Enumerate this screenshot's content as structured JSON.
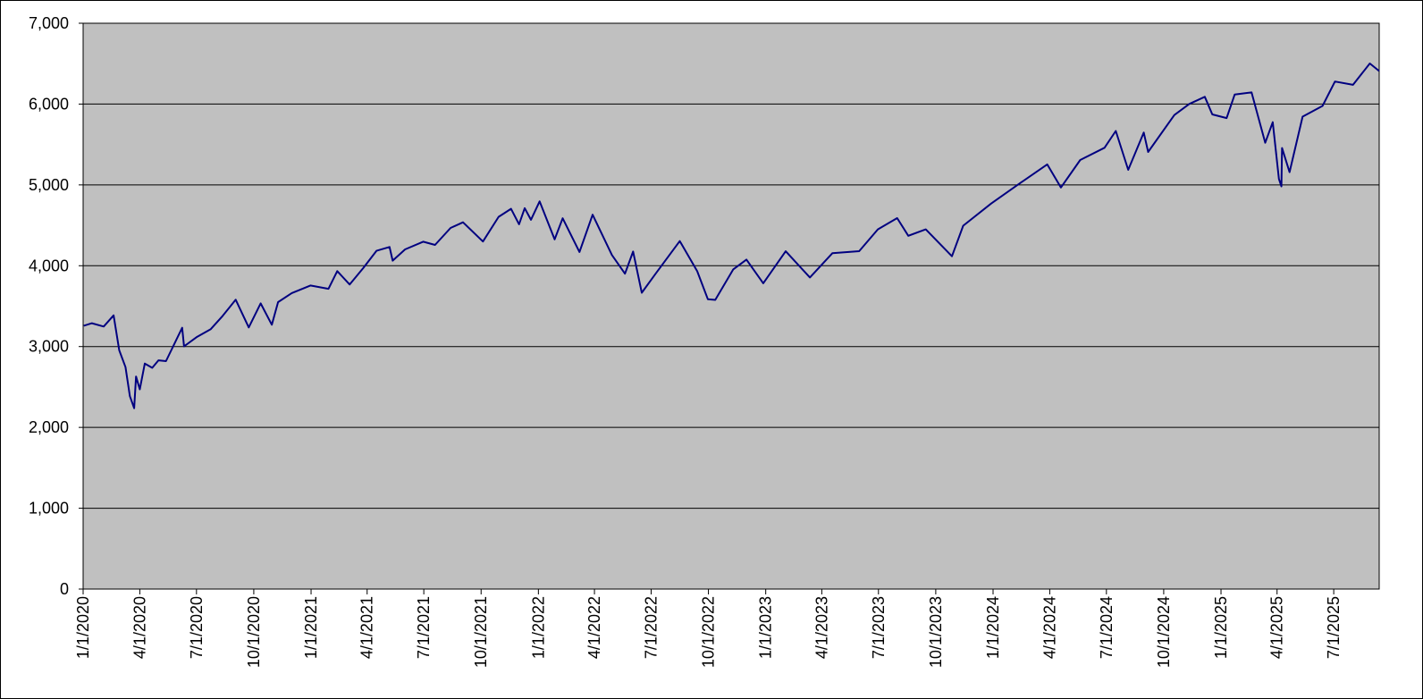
{
  "chart_data": {
    "type": "line",
    "title": "",
    "xlabel": "",
    "ylabel": "",
    "x_range": [
      "2020-01-01",
      "2025-09-12"
    ],
    "ylim": [
      0,
      7000
    ],
    "y_ticks": [
      0,
      1000,
      2000,
      3000,
      4000,
      5000,
      6000,
      7000
    ],
    "y_tick_labels": [
      "0",
      "1,000",
      "2,000",
      "3,000",
      "4,000",
      "5,000",
      "6,000",
      "7,000"
    ],
    "x_ticks": [
      "2020-01-01",
      "2020-04-01",
      "2020-07-01",
      "2020-10-01",
      "2021-01-01",
      "2021-04-01",
      "2021-07-01",
      "2021-10-01",
      "2022-01-01",
      "2022-04-01",
      "2022-07-01",
      "2022-10-01",
      "2023-01-01",
      "2023-04-01",
      "2023-07-01",
      "2023-10-01",
      "2024-01-01",
      "2024-04-01",
      "2024-07-01",
      "2024-10-01",
      "2025-01-01",
      "2025-04-01",
      "2025-07-01"
    ],
    "x_tick_labels": [
      "1/1/2020",
      "4/1/2020",
      "7/1/2020",
      "10/1/2020",
      "1/1/2021",
      "4/1/2021",
      "7/1/2021",
      "10/1/2021",
      "1/1/2022",
      "4/1/2022",
      "7/1/2022",
      "10/1/2022",
      "1/1/2023",
      "4/1/2023",
      "7/1/2023",
      "10/1/2023",
      "1/1/2024",
      "4/1/2024",
      "7/1/2024",
      "10/1/2024",
      "1/1/2025",
      "4/1/2025",
      "7/1/2025"
    ],
    "grid": "horizontal",
    "legend": "none",
    "colors": {
      "plot_background": "#c0c0c0",
      "line": "#000080",
      "grid": "#000000"
    },
    "series": [
      {
        "points": [
          [
            "2020-01-02",
            3258
          ],
          [
            "2020-01-15",
            3289
          ],
          [
            "2020-02-03",
            3248
          ],
          [
            "2020-02-19",
            3386
          ],
          [
            "2020-02-28",
            2954
          ],
          [
            "2020-03-09",
            2746
          ],
          [
            "2020-03-16",
            2386
          ],
          [
            "2020-03-23",
            2237
          ],
          [
            "2020-03-26",
            2630
          ],
          [
            "2020-04-01",
            2470
          ],
          [
            "2020-04-09",
            2790
          ],
          [
            "2020-04-21",
            2737
          ],
          [
            "2020-05-01",
            2830
          ],
          [
            "2020-05-13",
            2820
          ],
          [
            "2020-06-08",
            3232
          ],
          [
            "2020-06-11",
            3002
          ],
          [
            "2020-07-01",
            3115
          ],
          [
            "2020-07-24",
            3216
          ],
          [
            "2020-08-12",
            3380
          ],
          [
            "2020-09-02",
            3580
          ],
          [
            "2020-09-23",
            3237
          ],
          [
            "2020-10-12",
            3534
          ],
          [
            "2020-10-30",
            3270
          ],
          [
            "2020-11-09",
            3550
          ],
          [
            "2020-12-01",
            3662
          ],
          [
            "2020-12-31",
            3756
          ],
          [
            "2021-01-29",
            3714
          ],
          [
            "2021-02-12",
            3934
          ],
          [
            "2021-03-04",
            3768
          ],
          [
            "2021-03-26",
            3974
          ],
          [
            "2021-04-16",
            4185
          ],
          [
            "2021-05-07",
            4232
          ],
          [
            "2021-05-12",
            4063
          ],
          [
            "2021-06-01",
            4202
          ],
          [
            "2021-06-30",
            4297
          ],
          [
            "2021-07-19",
            4258
          ],
          [
            "2021-08-13",
            4468
          ],
          [
            "2021-09-02",
            4537
          ],
          [
            "2021-10-04",
            4300
          ],
          [
            "2021-10-29",
            4605
          ],
          [
            "2021-11-18",
            4704
          ],
          [
            "2021-12-01",
            4513
          ],
          [
            "2021-12-10",
            4712
          ],
          [
            "2021-12-20",
            4568
          ],
          [
            "2022-01-03",
            4796
          ],
          [
            "2022-01-27",
            4326
          ],
          [
            "2022-02-09",
            4587
          ],
          [
            "2022-03-08",
            4170
          ],
          [
            "2022-03-29",
            4631
          ],
          [
            "2022-04-29",
            4132
          ],
          [
            "2022-05-20",
            3901
          ],
          [
            "2022-06-02",
            4176
          ],
          [
            "2022-06-16",
            3666
          ],
          [
            "2022-07-08",
            3899
          ],
          [
            "2022-08-16",
            4305
          ],
          [
            "2022-09-13",
            3932
          ],
          [
            "2022-09-30",
            3586
          ],
          [
            "2022-10-12",
            3577
          ],
          [
            "2022-11-10",
            3956
          ],
          [
            "2022-12-01",
            4076
          ],
          [
            "2022-12-28",
            3783
          ],
          [
            "2023-02-02",
            4179
          ],
          [
            "2023-03-13",
            3855
          ],
          [
            "2023-04-18",
            4155
          ],
          [
            "2023-05-31",
            4180
          ],
          [
            "2023-06-30",
            4450
          ],
          [
            "2023-07-31",
            4589
          ],
          [
            "2023-08-18",
            4370
          ],
          [
            "2023-09-15",
            4450
          ],
          [
            "2023-10-27",
            4117
          ],
          [
            "2023-11-14",
            4495
          ],
          [
            "2023-12-29",
            4770
          ],
          [
            "2024-02-15",
            5030
          ],
          [
            "2024-03-28",
            5254
          ],
          [
            "2024-04-19",
            4967
          ],
          [
            "2024-05-20",
            5308
          ],
          [
            "2024-06-28",
            5460
          ],
          [
            "2024-07-16",
            5667
          ],
          [
            "2024-08-05",
            5186
          ],
          [
            "2024-08-30",
            5648
          ],
          [
            "2024-09-06",
            5408
          ],
          [
            "2024-10-18",
            5864
          ],
          [
            "2024-11-11",
            6001
          ],
          [
            "2024-12-06",
            6090
          ],
          [
            "2024-12-18",
            5872
          ],
          [
            "2025-01-10",
            5827
          ],
          [
            "2025-01-23",
            6118
          ],
          [
            "2025-02-19",
            6144
          ],
          [
            "2025-03-13",
            5521
          ],
          [
            "2025-03-25",
            5776
          ],
          [
            "2025-04-04",
            5074
          ],
          [
            "2025-04-08",
            4982
          ],
          [
            "2025-04-09",
            5456
          ],
          [
            "2025-04-21",
            5158
          ],
          [
            "2025-05-12",
            5844
          ],
          [
            "2025-06-13",
            5977
          ],
          [
            "2025-07-03",
            6279
          ],
          [
            "2025-08-01",
            6238
          ],
          [
            "2025-08-28",
            6502
          ],
          [
            "2025-09-12",
            6408
          ]
        ]
      }
    ]
  }
}
